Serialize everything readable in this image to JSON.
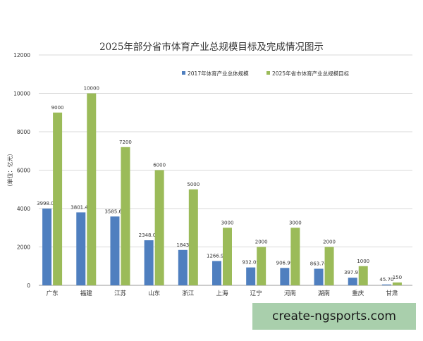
{
  "chart_data": {
    "type": "bar",
    "title": "2025年部分省市体育产业总规模目标及完成情况图示",
    "ylabel": "（单位：亿元）",
    "xlabel": "",
    "ylim": [
      0,
      12000
    ],
    "yticks": [
      "0",
      "2000",
      "4000",
      "6000",
      "8000",
      "10000",
      "12000"
    ],
    "grid": "horizontal",
    "legend_position": "top-right",
    "categories": [
      "广东",
      "福建",
      "江苏",
      "山东",
      "浙江",
      "上海",
      "辽宁",
      "河南",
      "湖南",
      "重庆",
      "甘肃"
    ],
    "series": [
      {
        "name": "2017年体育产业总体规模",
        "color": "#4f7fbf",
        "values": [
          3998.03,
          3801.41,
          3585.64,
          2348.01,
          1843,
          1266.93,
          932.09,
          906.99,
          863.74,
          397.91,
          45.7
        ],
        "labels": [
          "3998.03",
          "3801.41",
          "3585.64",
          "2348.01",
          "1843",
          "1266.93",
          "932.09",
          "906.99",
          "863.74",
          "397.91",
          "45.70"
        ]
      },
      {
        "name": "2025年省市体育产业总规模目标",
        "color": "#9bbb59",
        "values": [
          9000,
          10000,
          7200,
          6000,
          5000,
          3000,
          2000,
          3000,
          2000,
          1000,
          150
        ],
        "labels": [
          "9000",
          "10000",
          "7200",
          "6000",
          "5000",
          "3000",
          "2000",
          "3000",
          "2000",
          "1000",
          "150"
        ]
      }
    ]
  },
  "watermark": {
    "text": "create-ngsports.com"
  }
}
